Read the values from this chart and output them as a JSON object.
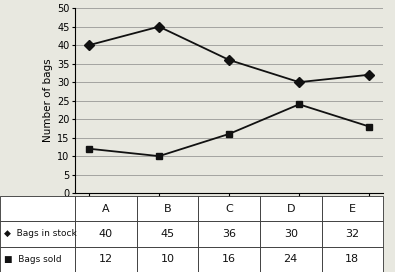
{
  "stores": [
    "A",
    "B",
    "C",
    "D",
    "E"
  ],
  "bags_in_stock": [
    40,
    45,
    36,
    30,
    32
  ],
  "bags_sold": [
    12,
    10,
    16,
    24,
    18
  ],
  "ylabel": "Number of bags",
  "ylim": [
    0,
    50
  ],
  "yticks": [
    0,
    5,
    10,
    15,
    20,
    25,
    30,
    35,
    40,
    45,
    50
  ],
  "stock_color": "#111111",
  "sold_color": "#111111",
  "stock_marker": "D",
  "sold_marker": "s",
  "legend_labels": [
    "Bags in stock",
    "Bags sold"
  ],
  "table_values_stock": [
    "40",
    "45",
    "36",
    "30",
    "32"
  ],
  "table_values_sold": [
    "12",
    "10",
    "16",
    "24",
    "18"
  ],
  "background_color": "#e8e8e0",
  "title": ""
}
